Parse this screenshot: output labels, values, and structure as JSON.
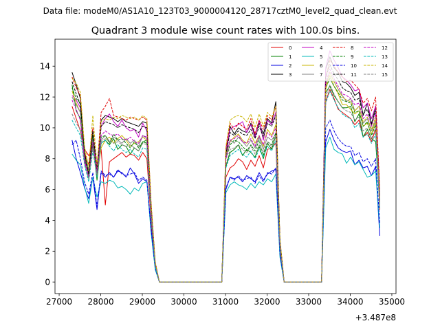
{
  "suptitle": "Data file: modeM0/AS1A10_123T03_9000004120_28717cztM0_level2_quad_clean.evt",
  "chart_data": {
    "type": "line",
    "title": "Quadrant 3 module wise count rates with 100.0s bins.",
    "xlabel": "",
    "ylabel": "",
    "x_offset_label": "+3.487e8",
    "xlim": [
      26900,
      35100
    ],
    "ylim": [
      -0.75,
      15.75
    ],
    "xticks": [
      27000,
      28000,
      29000,
      30000,
      31000,
      32000,
      33000,
      34000,
      35000
    ],
    "xtick_labels": [
      "27000",
      "28000",
      "29000",
      "30000",
      "31000",
      "32000",
      "33000",
      "34000",
      "35000"
    ],
    "yticks": [
      0,
      2,
      4,
      6,
      8,
      10,
      12,
      14
    ],
    "ytick_labels": [
      "0",
      "2",
      "4",
      "6",
      "8",
      "10",
      "12",
      "14"
    ],
    "grid": false,
    "legend_position": "top-right",
    "segments": [
      {
        "x_start": 27310,
        "x_end": 28910
      },
      {
        "x_start": 31010,
        "x_end": 32210
      },
      {
        "x_start": 33410,
        "x_end": 34710
      }
    ],
    "gap_value": 0,
    "series": [
      {
        "name": "0",
        "color": "#e00000",
        "dash": "solid",
        "values": [
          [
            11.4,
            10.6,
            9.8,
            8.6,
            8.2,
            8.8,
            7.4,
            8.6,
            5.0,
            7.8,
            8.0,
            8.2,
            8.4,
            8.1,
            8.3,
            8.2,
            7.9,
            8.4,
            8.0,
            4.0,
            1.0
          ],
          [
            6.8,
            7.4,
            7.6,
            8.0,
            7.8,
            7.3,
            7.9,
            7.5,
            8.2,
            7.4,
            8.6,
            8.7,
            9.0,
            2.0
          ],
          [
            11.7,
            12.5,
            11.9,
            11.2,
            11.0,
            10.8,
            10.6,
            10.2,
            10.5,
            9.4,
            9.7,
            9.1,
            9.9,
            4.7
          ]
        ]
      },
      {
        "name": "1",
        "color": "#008000",
        "dash": "solid",
        "values": [
          [
            12.8,
            11.1,
            10.6,
            7.9,
            6.7,
            9.0,
            6.6,
            9.0,
            9.2,
            8.9,
            9.3,
            8.6,
            8.9,
            8.8,
            8.3,
            8.7,
            8.5,
            9.1,
            9.0,
            4.7,
            1.2
          ],
          [
            7.5,
            8.4,
            8.6,
            8.9,
            8.2,
            8.6,
            8.4,
            8.1,
            8.8,
            8.0,
            9.0,
            8.6,
            9.5,
            2.3
          ],
          [
            12.3,
            12.7,
            12.1,
            11.7,
            11.3,
            11.3,
            11.4,
            10.4,
            10.9,
            9.4,
            9.9,
            9.3,
            9.1,
            5.2
          ]
        ]
      },
      {
        "name": "2",
        "color": "#0000e0",
        "dash": "solid",
        "values": [
          [
            9.2,
            8.0,
            7.1,
            6.1,
            5.4,
            6.8,
            4.7,
            7.1,
            6.8,
            7.1,
            6.8,
            7.2,
            7.1,
            6.8,
            7.4,
            7.0,
            6.4,
            6.7,
            6.5,
            3.5,
            0.9
          ],
          [
            6.0,
            6.8,
            6.7,
            6.8,
            6.5,
            6.9,
            6.7,
            6.5,
            7.1,
            6.6,
            7.0,
            7.2,
            7.3,
            1.7
          ],
          [
            9.1,
            9.9,
            9.2,
            8.7,
            8.5,
            8.4,
            8.5,
            7.6,
            7.9,
            7.4,
            7.5,
            6.9,
            7.5,
            3.0
          ]
        ]
      },
      {
        "name": "3",
        "color": "#000000",
        "dash": "solid",
        "values": [
          [
            13.6,
            12.8,
            11.9,
            8.0,
            7.2,
            9.8,
            7.0,
            10.5,
            10.8,
            10.7,
            10.6,
            10.4,
            10.6,
            10.4,
            10.3,
            10.2,
            10.1,
            10.4,
            10.3,
            5.0,
            1.2
          ],
          [
            8.2,
            10.1,
            9.6,
            10.0,
            9.8,
            9.7,
            10.3,
            9.5,
            10.3,
            9.6,
            10.6,
            10.3,
            11.7,
            2.7
          ],
          [
            13.8,
            14.6,
            13.9,
            13.6,
            13.0,
            12.9,
            12.6,
            12.1,
            12.3,
            10.8,
            11.6,
            10.2,
            11.4,
            5.7
          ]
        ]
      },
      {
        "name": "4",
        "color": "#c000c0",
        "dash": "solid",
        "values": [
          [
            12.1,
            11.8,
            11.3,
            7.8,
            6.8,
            9.6,
            7.5,
            10.1,
            10.6,
            10.9,
            10.4,
            10.1,
            10.5,
            10.0,
            9.8,
            9.9,
            9.4,
            10.3,
            9.8,
            4.9,
            1.2
          ],
          [
            8.6,
            9.9,
            10.1,
            10.2,
            10.4,
            9.7,
            10.2,
            9.4,
            10.5,
            9.2,
            10.5,
            10.2,
            11.0,
            2.6
          ],
          [
            13.9,
            15.0,
            14.4,
            13.9,
            13.3,
            13.1,
            12.8,
            12.4,
            12.5,
            11.3,
            11.6,
            10.6,
            11.4,
            5.6
          ]
        ]
      },
      {
        "name": "5",
        "color": "#00b8b8",
        "dash": "solid",
        "values": [
          [
            8.3,
            7.9,
            7.6,
            6.2,
            5.1,
            6.8,
            5.5,
            6.5,
            6.4,
            6.6,
            6.5,
            6.1,
            6.2,
            6.0,
            5.7,
            6.1,
            5.9,
            6.4,
            6.5,
            3.2,
            0.8
          ],
          [
            5.8,
            6.3,
            6.5,
            6.3,
            6.2,
            6.0,
            6.4,
            6.1,
            6.5,
            6.3,
            6.7,
            6.5,
            7.0,
            1.6
          ],
          [
            8.7,
            9.4,
            8.6,
            8.4,
            8.3,
            7.7,
            8.1,
            7.6,
            7.8,
            7.3,
            6.8,
            6.9,
            7.2,
            3.5
          ]
        ]
      },
      {
        "name": "6",
        "color": "#c8b400",
        "dash": "solid",
        "values": [
          [
            12.4,
            11.6,
            11.0,
            8.5,
            7.1,
            9.7,
            7.0,
            8.7,
            9.2,
            9.4,
            9.0,
            9.3,
            9.5,
            9.2,
            8.8,
            9.0,
            9.1,
            9.4,
            9.2,
            4.6,
            1.1
          ],
          [
            8.3,
            9.1,
            9.4,
            9.6,
            9.2,
            9.0,
            9.6,
            9.0,
            9.5,
            8.8,
            9.9,
            9.5,
            10.2,
            2.4
          ],
          [
            12.5,
            13.4,
            12.7,
            12.2,
            11.5,
            11.5,
            11.2,
            10.9,
            11.1,
            10.1,
            10.3,
            9.6,
            10.4,
            5.2
          ]
        ]
      },
      {
        "name": "7",
        "color": "#808080",
        "dash": "solid",
        "values": [
          [
            12.0,
            11.5,
            11.0,
            8.2,
            7.3,
            9.4,
            7.1,
            9.2,
            9.5,
            9.1,
            9.4,
            9.2,
            9.0,
            9.3,
            9.0,
            9.2,
            8.8,
            9.5,
            9.3,
            4.7,
            1.2
          ],
          [
            8.1,
            9.2,
            9.0,
            9.4,
            9.1,
            8.8,
            9.2,
            8.7,
            9.4,
            8.6,
            9.4,
            9.2,
            9.6,
            2.3
          ],
          [
            12.8,
            13.6,
            13.0,
            12.5,
            12.1,
            11.7,
            11.9,
            11.1,
            11.4,
            10.3,
            10.6,
            9.8,
            10.5,
            5.3
          ]
        ]
      },
      {
        "name": "8",
        "color": "#e00000",
        "dash": "dashed",
        "values": [
          [
            13.3,
            12.6,
            12.1,
            8.4,
            7.6,
            10.0,
            7.3,
            11.0,
            11.4,
            11.9,
            10.8,
            10.7,
            10.6,
            10.5,
            10.7,
            10.6,
            10.5,
            10.7,
            10.5,
            5.2,
            1.3
          ],
          [
            8.7,
            10.3,
            9.9,
            10.3,
            10.1,
            9.9,
            10.6,
            9.6,
            10.5,
            9.9,
            10.8,
            10.5,
            11.4,
            2.7
          ],
          [
            13.2,
            14.4,
            14.0,
            13.6,
            13.3,
            13.0,
            13.1,
            12.8,
            12.5,
            11.6,
            11.9,
            11.1,
            12.0,
            6.0
          ]
        ]
      },
      {
        "name": "9",
        "color": "#008000",
        "dash": "dashed",
        "values": [
          [
            12.6,
            11.9,
            11.6,
            8.3,
            6.9,
            9.6,
            6.9,
            9.4,
            9.5,
            9.0,
            9.6,
            9.2,
            9.3,
            9.0,
            8.7,
            9.1,
            8.7,
            9.1,
            9.2,
            4.6,
            1.1
          ],
          [
            8.0,
            8.9,
            9.2,
            9.1,
            8.8,
            8.5,
            8.9,
            8.5,
            9.2,
            8.2,
            9.1,
            8.9,
            9.7,
            2.3
          ],
          [
            12.6,
            13.2,
            12.7,
            12.3,
            11.8,
            11.7,
            11.6,
            11.0,
            11.1,
            10.1,
            10.4,
            9.5,
            10.2,
            5.0
          ]
        ]
      },
      {
        "name": "10",
        "color": "#0000e0",
        "dash": "dashed",
        "values": [
          [
            8.9,
            9.2,
            8.0,
            6.5,
            5.7,
            7.1,
            4.9,
            7.2,
            6.9,
            7.0,
            6.8,
            7.3,
            7.0,
            6.9,
            7.0,
            7.1,
            6.6,
            6.8,
            6.6,
            3.4,
            0.9
          ],
          [
            6.1,
            6.8,
            6.6,
            6.9,
            6.6,
            6.7,
            6.8,
            6.4,
            6.9,
            6.5,
            7.1,
            7.0,
            7.4,
            1.8
          ],
          [
            10.0,
            10.5,
            9.8,
            9.3,
            9.0,
            8.8,
            8.8,
            8.2,
            8.4,
            7.8,
            8.0,
            7.5,
            8.0,
            3.8
          ]
        ]
      },
      {
        "name": "11",
        "color": "#000000",
        "dash": "dashed",
        "values": [
          [
            13.0,
            12.2,
            11.5,
            8.4,
            7.0,
            9.8,
            7.2,
            10.1,
            10.4,
            10.3,
            10.2,
            10.0,
            10.2,
            10.1,
            10.0,
            9.9,
            9.7,
            10.1,
            10.0,
            4.9,
            1.2
          ],
          [
            8.3,
            9.7,
            9.5,
            9.8,
            9.6,
            9.5,
            9.9,
            9.3,
            10.1,
            9.4,
            10.3,
            10.1,
            10.8,
            2.6
          ],
          [
            13.3,
            14.1,
            13.5,
            13.1,
            12.6,
            12.4,
            12.3,
            11.8,
            11.9,
            10.9,
            11.2,
            10.3,
            11.1,
            5.5
          ]
        ]
      },
      {
        "name": "12",
        "color": "#c000c0",
        "dash": "dashed",
        "values": [
          [
            11.8,
            11.2,
            10.5,
            8.0,
            6.8,
            9.1,
            7.1,
            9.5,
            9.8,
            9.6,
            9.5,
            9.6,
            9.3,
            9.2,
            9.4,
            9.1,
            9.0,
            9.5,
            9.4,
            4.6,
            1.1
          ],
          [
            8.0,
            9.2,
            9.3,
            9.5,
            9.1,
            9.0,
            9.3,
            8.8,
            9.5,
            8.9,
            9.7,
            9.4,
            10.0,
            2.4
          ],
          [
            12.9,
            13.8,
            13.2,
            12.7,
            12.2,
            12.1,
            11.9,
            11.5,
            11.6,
            10.6,
            10.9,
            10.1,
            10.9,
            5.4
          ]
        ]
      },
      {
        "name": "13",
        "color": "#00b8b8",
        "dash": "dashed",
        "values": [
          [
            10.5,
            10.0,
            9.5,
            7.6,
            6.5,
            8.5,
            6.8,
            9.0,
            9.2,
            8.8,
            8.5,
            8.9,
            8.6,
            8.4,
            8.6,
            8.3,
            8.1,
            8.7,
            8.6,
            4.3,
            1.0
          ],
          [
            7.4,
            8.2,
            8.4,
            8.6,
            8.3,
            8.1,
            8.5,
            8.0,
            8.6,
            8.1,
            8.8,
            8.5,
            9.2,
            2.2
          ],
          [
            11.6,
            12.4,
            11.8,
            11.3,
            10.9,
            10.7,
            10.6,
            10.0,
            10.3,
            9.4,
            9.6,
            9.0,
            9.6,
            4.8
          ]
        ]
      },
      {
        "name": "14",
        "color": "#c8b400",
        "dash": "dashed",
        "values": [
          [
            13.2,
            12.9,
            12.3,
            8.8,
            7.4,
            10.8,
            7.6,
            10.4,
            10.6,
            10.5,
            10.7,
            10.6,
            10.8,
            10.7,
            10.6,
            10.7,
            10.5,
            10.8,
            10.6,
            5.2,
            1.3
          ],
          [
            8.8,
            10.5,
            10.7,
            10.8,
            10.7,
            10.4,
            10.9,
            10.0,
            10.9,
            10.1,
            11.0,
            10.7,
            11.4,
            2.8
          ],
          [
            12.6,
            13.6,
            13.0,
            12.5,
            12.0,
            11.8,
            11.7,
            11.1,
            11.4,
            10.4,
            10.7,
            9.9,
            10.7,
            5.4
          ]
        ]
      },
      {
        "name": "15",
        "color": "#808080",
        "dash": "dashed",
        "values": [
          [
            10.9,
            10.3,
            9.9,
            7.7,
            6.7,
            8.7,
            6.9,
            9.1,
            9.3,
            9.2,
            9.0,
            9.1,
            8.9,
            8.8,
            8.9,
            8.7,
            8.5,
            9.0,
            8.9,
            4.4,
            1.1
          ],
          [
            7.6,
            8.6,
            8.7,
            8.9,
            8.6,
            8.4,
            8.8,
            8.3,
            8.9,
            8.4,
            9.1,
            8.8,
            9.5,
            2.3
          ],
          [
            12.0,
            12.8,
            12.2,
            11.7,
            11.3,
            11.1,
            11.0,
            10.5,
            10.7,
            9.8,
            10.0,
            9.3,
            10.0,
            5.0
          ]
        ]
      }
    ]
  }
}
